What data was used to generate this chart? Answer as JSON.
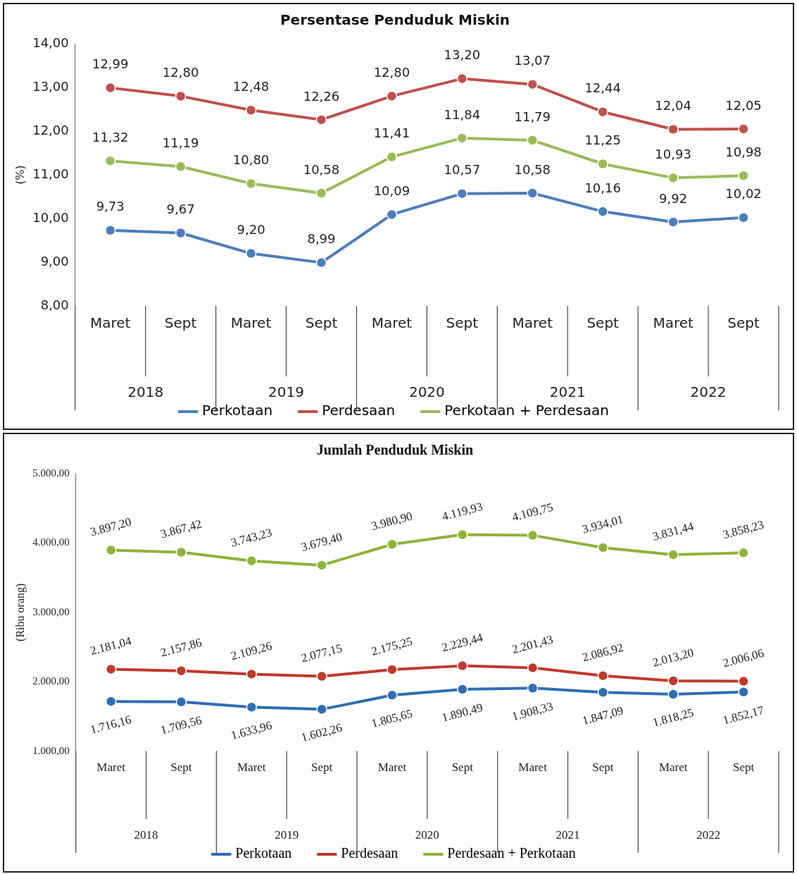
{
  "chart_data": [
    {
      "type": "line",
      "title": "Persentase Penduduk Miskin",
      "ylabel": "(%)",
      "categories": [
        "Maret",
        "Sept",
        "Maret",
        "Sept",
        "Maret",
        "Sept",
        "Maret",
        "Sept",
        "Maret",
        "Sept"
      ],
      "annotations": [
        "2018",
        "2019",
        "2020",
        "2021",
        "2022"
      ],
      "ylim": [
        8,
        14
      ],
      "yticks": [
        {
          "value": 8,
          "label": "8,00"
        },
        {
          "value": 9,
          "label": "9,00"
        },
        {
          "value": 10,
          "label": "10,00"
        },
        {
          "value": 11,
          "label": "11,00"
        },
        {
          "value": 12,
          "label": "12,00"
        },
        {
          "value": 13,
          "label": "13,00"
        },
        {
          "value": 14,
          "label": "14,00"
        }
      ],
      "grid": false,
      "legend": "bottom",
      "marker": "circle",
      "series": [
        {
          "name": "Perkotaan",
          "color": "#4a7ebb",
          "values": [
            9.73,
            9.67,
            9.2,
            8.99,
            10.09,
            10.57,
            10.58,
            10.16,
            9.92,
            10.02
          ],
          "value_labels": [
            "9,73",
            "9,67",
            "9,20",
            "8,99",
            "10,09",
            "10,57",
            "10,58",
            "10,16",
            "9,92",
            "10,02"
          ]
        },
        {
          "name": "Perdesaan",
          "color": "#c0504d",
          "values": [
            12.99,
            12.8,
            12.48,
            12.26,
            12.8,
            13.2,
            13.07,
            12.44,
            12.04,
            12.05
          ],
          "value_labels": [
            "12,99",
            "12,80",
            "12,48",
            "12,26",
            "12,80",
            "13,20",
            "13,07",
            "12,44",
            "12,04",
            "12,05"
          ]
        },
        {
          "name": "Perkotaan + Perdesaan",
          "color": "#9bbb59",
          "values": [
            11.32,
            11.19,
            10.8,
            10.58,
            11.41,
            11.84,
            11.79,
            11.25,
            10.93,
            10.98
          ],
          "value_labels": [
            "11,32",
            "11,19",
            "10,80",
            "10,58",
            "11,41",
            "11,84",
            "11,79",
            "11,25",
            "10,93",
            "10,98"
          ]
        }
      ]
    },
    {
      "type": "line",
      "title": "Jumlah Penduduk Miskin",
      "ylabel": "(Ribu orang)",
      "categories": [
        "Maret",
        "Sept",
        "Maret",
        "Sept",
        "Maret",
        "Sept",
        "Maret",
        "Sept",
        "Maret",
        "Sept"
      ],
      "annotations": [
        "2018",
        "2019",
        "2020",
        "2021",
        "2022"
      ],
      "ylim": [
        1000,
        5000
      ],
      "yticks": [
        {
          "value": 1000,
          "label": "1.000,00"
        },
        {
          "value": 2000,
          "label": "2.000,00"
        },
        {
          "value": 3000,
          "label": "3.000,00"
        },
        {
          "value": 4000,
          "label": "4.000,00"
        },
        {
          "value": 5000,
          "label": "5.000,00"
        }
      ],
      "grid": false,
      "legend": "bottom",
      "marker": "circle",
      "series": [
        {
          "name": "Perkotaan",
          "color": "#2e6db4",
          "values": [
            1716.16,
            1709.56,
            1633.96,
            1602.26,
            1805.65,
            1890.49,
            1908.33,
            1847.09,
            1818.25,
            1852.17
          ],
          "value_labels": [
            "1.716,16",
            "1.709,56",
            "1.633,96",
            "1.602,26",
            "1.805,65",
            "1.890,49",
            "1.908,33",
            "1.847,09",
            "1.818,25",
            "1.852,17"
          ]
        },
        {
          "name": "Perdesaan",
          "color": "#c0392b",
          "values": [
            2181.04,
            2157.86,
            2109.26,
            2077.15,
            2175.25,
            2229.44,
            2201.43,
            2086.92,
            2013.2,
            2006.06
          ],
          "value_labels": [
            "2.181,04",
            "2.157,86",
            "2.109,26",
            "2.077,15",
            "2.175,25",
            "2.229,44",
            "2.201,43",
            "2.086,92",
            "2.013,20",
            "2.006,06"
          ]
        },
        {
          "name": "Perdesaan + Perkotaan",
          "color": "#8db33a",
          "values": [
            3897.2,
            3867.42,
            3743.23,
            3679.4,
            3980.9,
            4119.93,
            4109.75,
            3934.01,
            3831.44,
            3858.23
          ],
          "value_labels": [
            "3.897,20",
            "3.867,42",
            "3.743,23",
            "3.679,40",
            "3.980,90",
            "4.119,93",
            "4.109,75",
            "3.934,01",
            "3.831,44",
            "3.858,23"
          ]
        }
      ]
    }
  ]
}
